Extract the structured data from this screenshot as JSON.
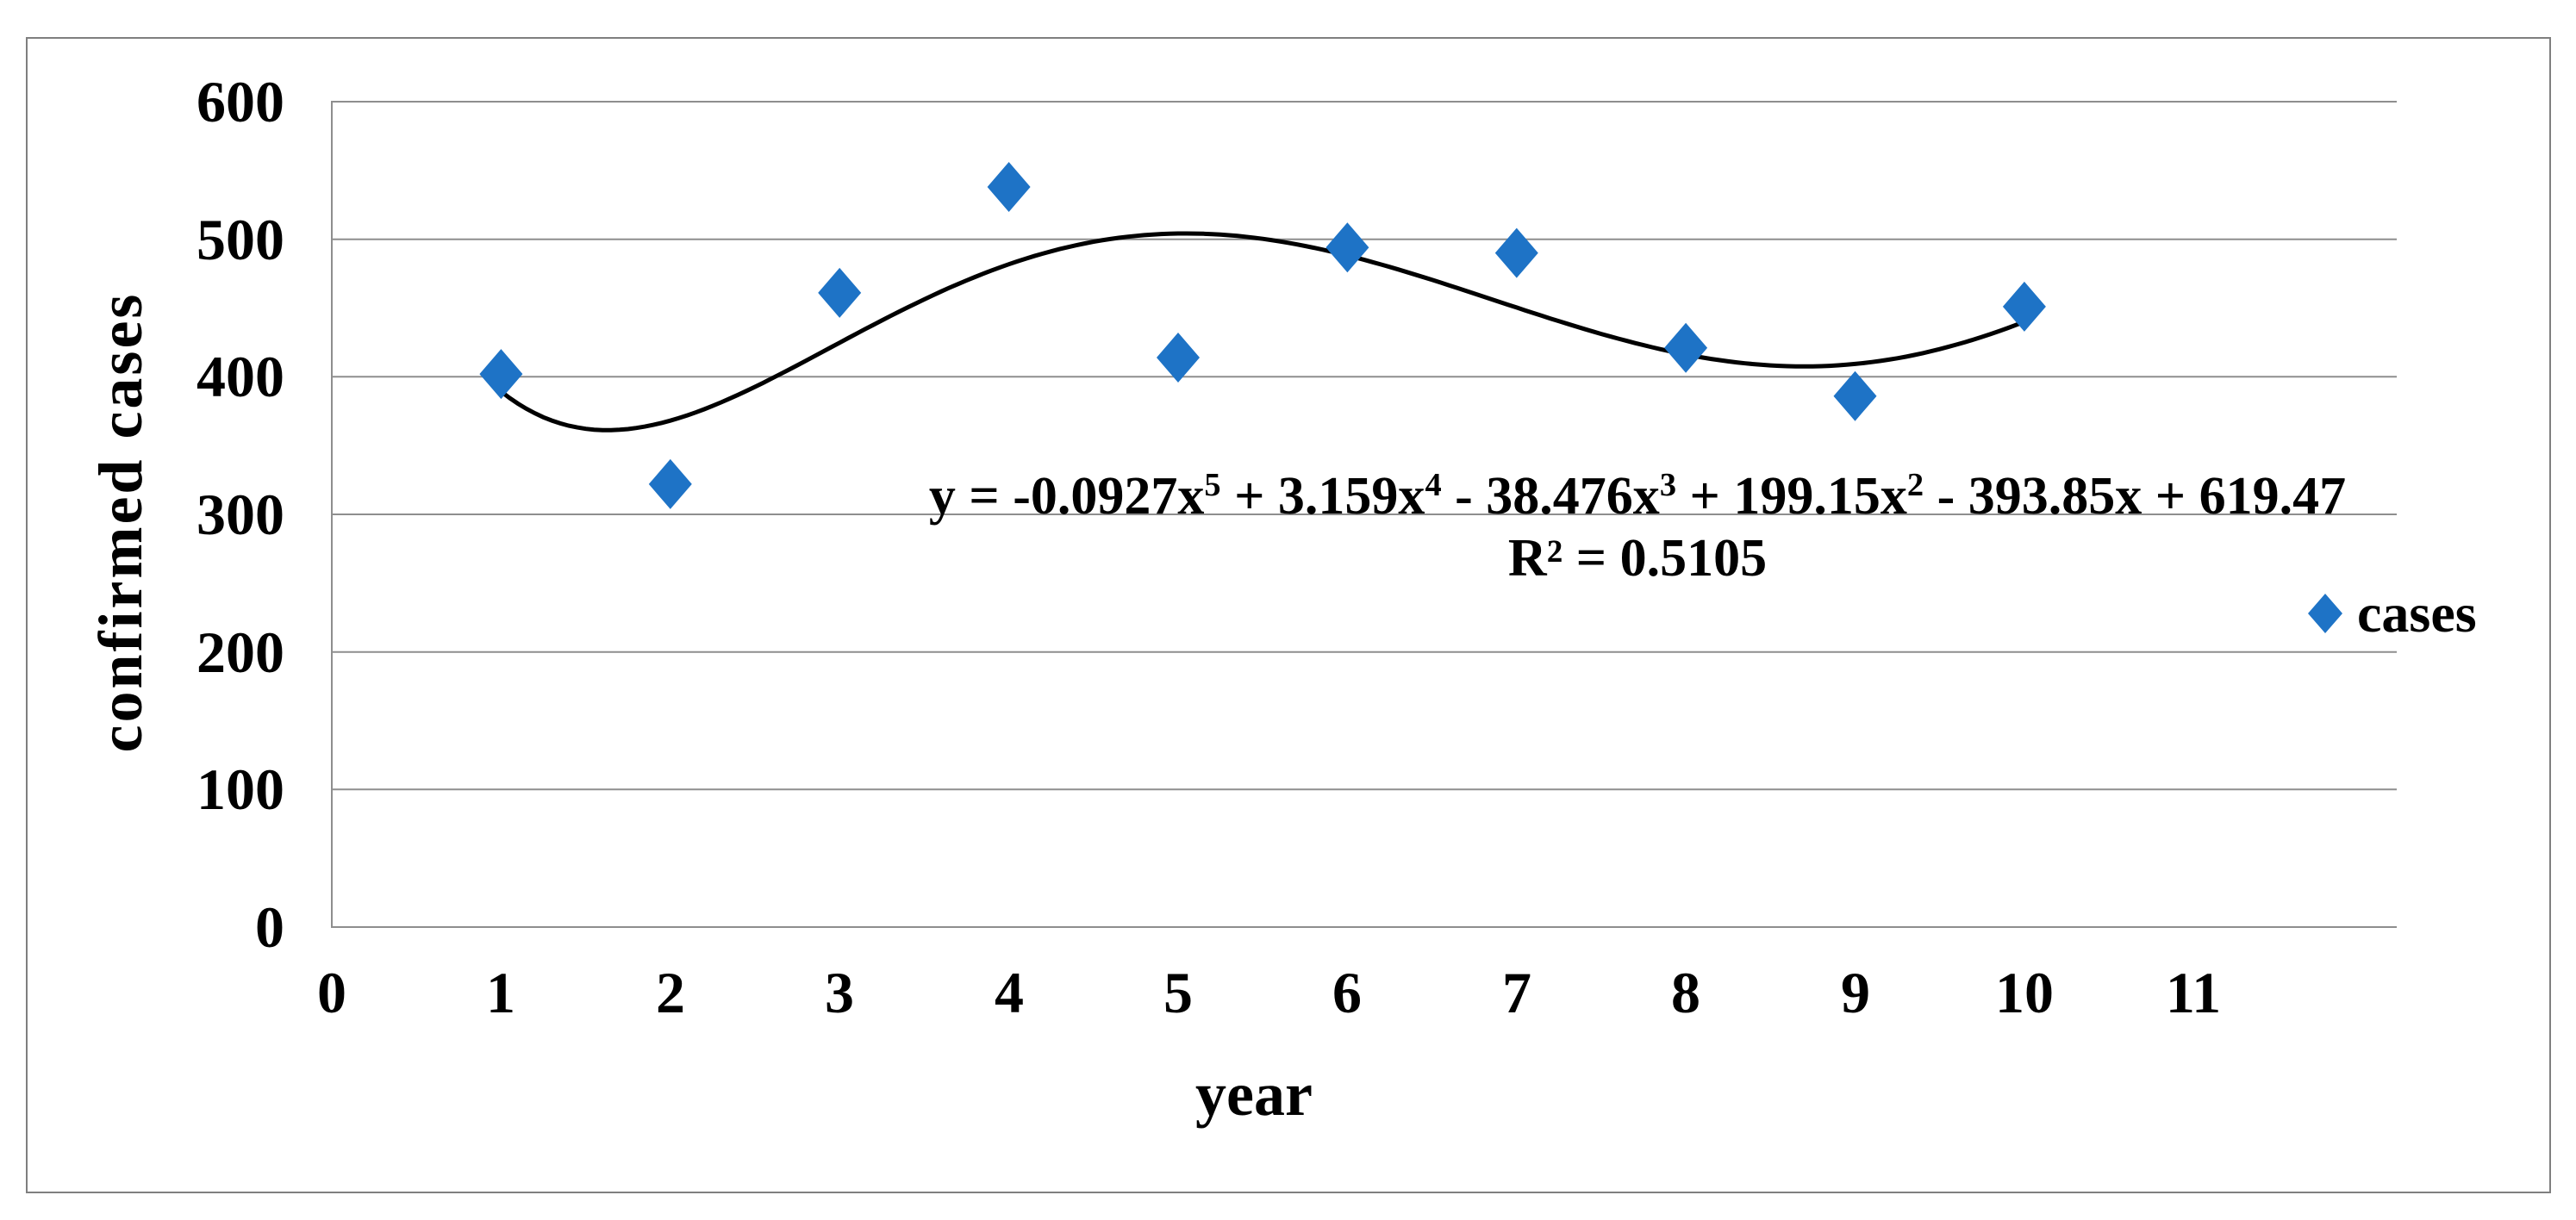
{
  "chart_data": {
    "type": "scatter",
    "title": "",
    "xlabel": "year",
    "ylabel": "confirmed cases",
    "x": [
      1,
      2,
      3,
      4,
      5,
      6,
      7,
      8,
      9,
      10
    ],
    "series": [
      {
        "name": "cases",
        "values": [
          402,
          322,
          461,
          538,
          414,
          494,
          490,
          421,
          386,
          451
        ]
      }
    ],
    "xlim": [
      0,
      12.2
    ],
    "ylim": [
      0,
      600
    ],
    "xticks": [
      0,
      1,
      2,
      3,
      4,
      5,
      6,
      7,
      8,
      9,
      10,
      11
    ],
    "yticks": [
      0,
      100,
      200,
      300,
      400,
      500,
      600
    ],
    "grid": "horizontal",
    "grid_color": "#8e8e8e",
    "axis_color": "#8e8e8e",
    "border_color": "#7f7f7f",
    "marker": "diamond",
    "marker_color": "#1e73c6",
    "legend_position": "right",
    "trendline": {
      "type": "polynomial",
      "degree": 5,
      "coefficients": [
        -0.0927,
        3.159,
        -38.476,
        199.15,
        -393.85,
        619.47
      ],
      "color": "#000000",
      "domain": [
        1,
        10
      ]
    }
  },
  "equation": {
    "terms": [
      {
        "coef": "y = -0.0927x",
        "exp": "5"
      },
      {
        "coef": " + 3.159x",
        "exp": "4"
      },
      {
        "coef": " - 38.476x",
        "exp": "3"
      },
      {
        "coef": " + 199.15x",
        "exp": "2"
      },
      {
        "coef": " - 393.85x",
        "exp": ""
      },
      {
        "coef": " + 619.47",
        "exp": ""
      }
    ],
    "r2": "R² = 0.5105"
  }
}
